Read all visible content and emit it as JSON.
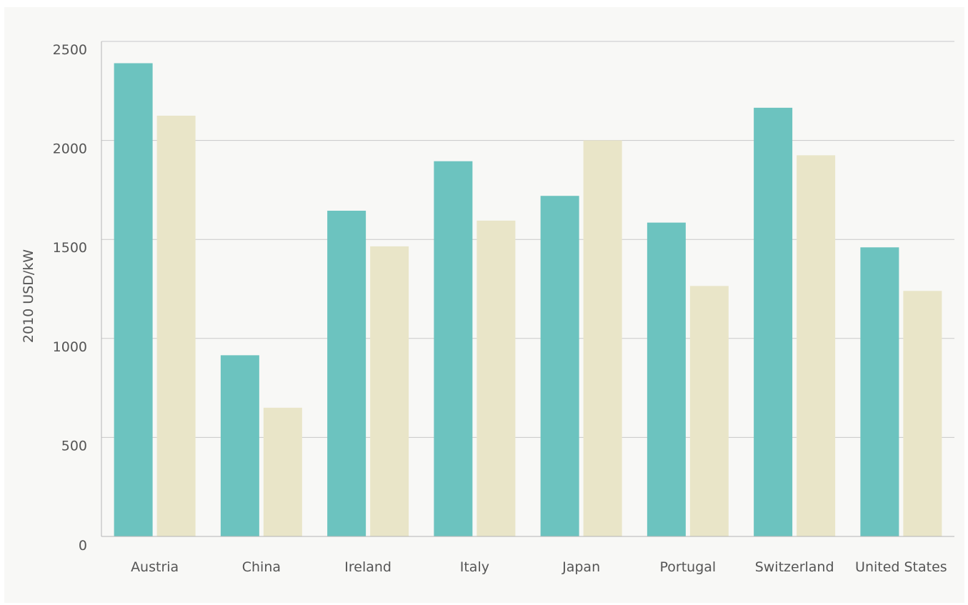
{
  "chart_data": {
    "type": "bar",
    "title": "",
    "xlabel": "",
    "ylabel": "2010 USD/kW",
    "ylim": [
      0,
      2500
    ],
    "yticks": [
      0,
      500,
      1000,
      1500,
      2000,
      2500
    ],
    "grid": true,
    "categories": [
      "Austria",
      "China",
      "Ireland",
      "Italy",
      "Japan",
      "Portugal",
      "Switzerland",
      "United States"
    ],
    "series": [
      {
        "values": [
          2390,
          915,
          1645,
          1895,
          1720,
          1585,
          2165,
          1460
        ],
        "color": "#6cc3bf"
      },
      {
        "values": [
          2125,
          650,
          1465,
          1595,
          2000,
          1265,
          1925,
          1240
        ],
        "color": "#e9e5c8"
      }
    ]
  }
}
